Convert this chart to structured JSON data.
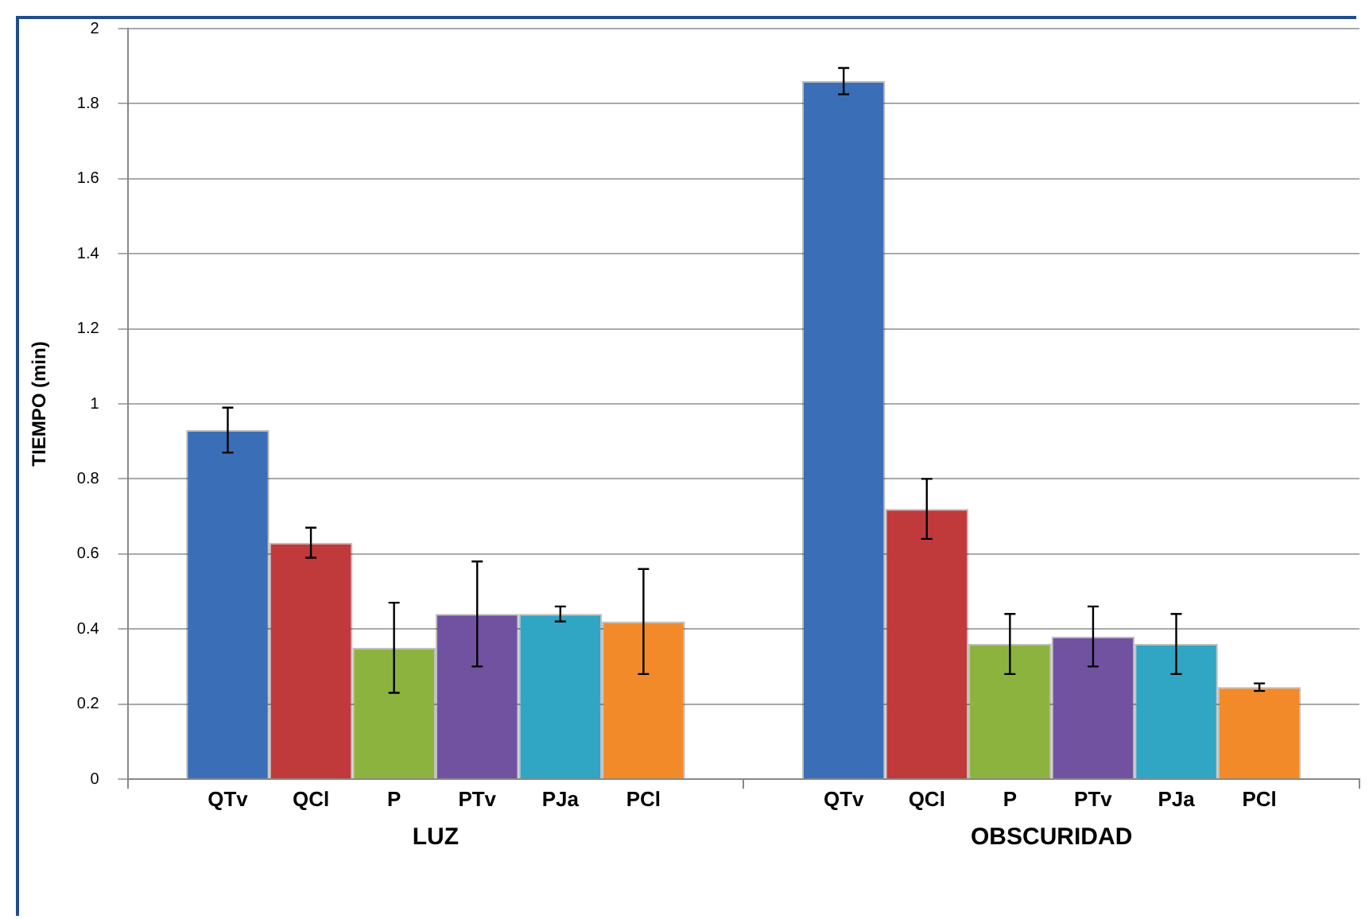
{
  "chart_data": {
    "type": "bar",
    "ylabel": "TIEMPO (min)",
    "categories": [
      "LUZ",
      "OBSCURIDAD"
    ],
    "series": [
      {
        "name": "QTv",
        "color": "#3a6fb8",
        "values": [
          0.93,
          1.86
        ],
        "errors": [
          0.06,
          0.035
        ]
      },
      {
        "name": "QCl",
        "color": "#c0393b",
        "values": [
          0.63,
          0.72
        ],
        "errors": [
          0.04,
          0.08
        ]
      },
      {
        "name": "P",
        "color": "#8db33f",
        "values": [
          0.35,
          0.36
        ],
        "errors": [
          0.12,
          0.08
        ]
      },
      {
        "name": "PTv",
        "color": "#7152a0",
        "values": [
          0.44,
          0.38
        ],
        "errors": [
          0.14,
          0.08
        ]
      },
      {
        "name": "PJa",
        "color": "#31a5c4",
        "values": [
          0.44,
          0.36
        ],
        "errors": [
          0.02,
          0.08
        ]
      },
      {
        "name": "PCl",
        "color": "#f28a2a",
        "values": [
          0.42,
          0.245
        ],
        "errors": [
          0.14,
          0.01
        ]
      }
    ],
    "ylim": [
      0,
      2
    ],
    "yticks": [
      0,
      0.2,
      0.4,
      0.6,
      0.8,
      1,
      1.2,
      1.4,
      1.6,
      1.8,
      2
    ],
    "grid": "y",
    "legend": false
  }
}
